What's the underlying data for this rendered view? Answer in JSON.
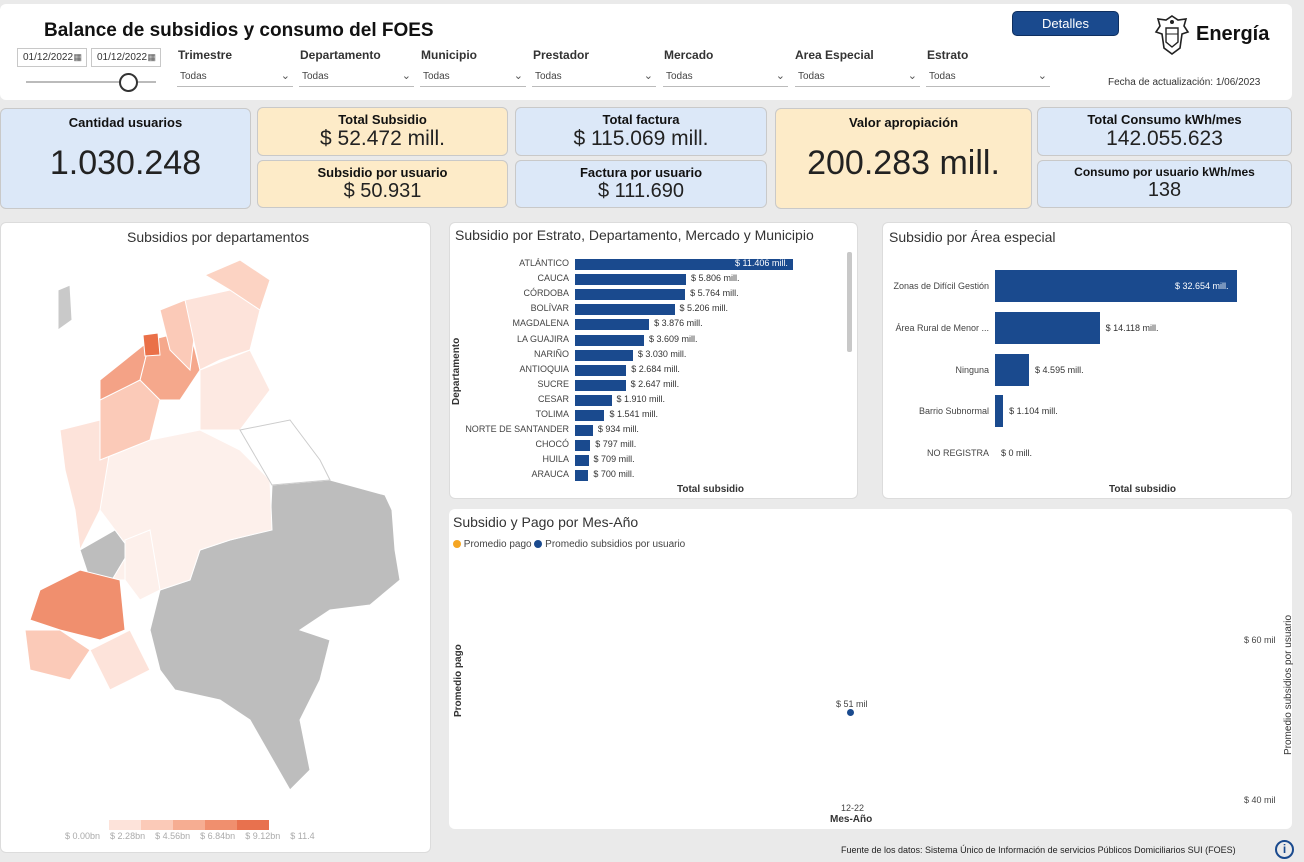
{
  "header": {
    "title": "Balance de subsidios y consumo del FOES",
    "date_from": "01/12/2022",
    "date_to": "01/12/2022",
    "detalles_label": "Detalles",
    "brand": "Energía",
    "fecha_actualizacion": "Fecha de actualización: 1/06/2023"
  },
  "filters": [
    {
      "label": "Trimestre",
      "value": "Todas"
    },
    {
      "label": "Departamento",
      "value": "Todas"
    },
    {
      "label": "Municipio",
      "value": "Todas"
    },
    {
      "label": "Prestador",
      "value": "Todas"
    },
    {
      "label": "Mercado",
      "value": "Todas"
    },
    {
      "label": "Area Especial",
      "value": "Todas"
    },
    {
      "label": "Estrato",
      "value": "Todas"
    }
  ],
  "kpis": {
    "usuarios": {
      "label": "Cantidad usuarios",
      "value": "1.030.248"
    },
    "total_subsidio": {
      "label": "Total Subsidio",
      "value": "$ 52.472 mill."
    },
    "subsidio_usuario": {
      "label": "Subsidio por usuario",
      "value": "$ 50.931"
    },
    "total_factura": {
      "label": "Total factura",
      "value": "$ 115.069 mill."
    },
    "factura_usuario": {
      "label": "Factura por usuario",
      "value": "$ 111.690"
    },
    "apropiacion": {
      "label": "Valor apropiación",
      "value": "200.283 mill."
    },
    "total_consumo": {
      "label": "Total Consumo kWh/mes",
      "value": "142.055.623"
    },
    "consumo_usuario": {
      "label": "Consumo por usuario kWh/mes",
      "value": "138"
    }
  },
  "map": {
    "title": "Subsidios por departamentos",
    "legend": [
      "$ 0.00bn",
      "$ 2.28bn",
      "$ 4.56bn",
      "$ 6.84bn",
      "$ 9.12bn",
      "$ 11.4"
    ],
    "colors": [
      "#fde3da",
      "#fbcab8",
      "#f6ad92",
      "#f08f6e",
      "#e8714e"
    ]
  },
  "chart_data": [
    {
      "type": "bar",
      "title": "Subsidio por Estrato, Departamento, Mercado y Municipio",
      "ylabel": "Departamento",
      "xlabel": "Total subsidio",
      "categories": [
        "ATLÁNTICO",
        "CAUCA",
        "CÓRDOBA",
        "BOLÍVAR",
        "MAGDALENA",
        "LA GUAJIRA",
        "NARIÑO",
        "ANTIOQUIA",
        "SUCRE",
        "CESAR",
        "TOLIMA",
        "NORTE DE SANTANDER",
        "CHOCÓ",
        "HUILA",
        "ARAUCA"
      ],
      "values": [
        11406,
        5806,
        5764,
        5206,
        3876,
        3609,
        3030,
        2684,
        2647,
        1910,
        1541,
        934,
        797,
        709,
        700
      ],
      "value_labels": [
        "$ 11.406 mill.",
        "$ 5.806 mill.",
        "$ 5.764 mill.",
        "$ 5.206 mill.",
        "$ 3.876 mill.",
        "$ 3.609 mill.",
        "$ 3.030 mill.",
        "$ 2.684 mill.",
        "$ 2.647 mill.",
        "$ 1.910 mill.",
        "$ 1.541 mill.",
        "$ 934 mill.",
        "$ 797 mill.",
        "$ 709 mill.",
        "$ 700 mill."
      ],
      "color": "#1a4a8e"
    },
    {
      "type": "bar",
      "title": "Subsidio por Área especial",
      "xlabel": "Total subsidio",
      "categories": [
        "Zonas de Difícil Gestión",
        "Área Rural de Menor ...",
        "Ninguna",
        "Barrio Subnormal",
        "NO REGISTRA"
      ],
      "values": [
        32654,
        14118,
        4595,
        1104,
        0
      ],
      "value_labels": [
        "$ 32.654 mill.",
        "$ 14.118 mill.",
        "$ 4.595 mill.",
        "$ 1.104 mill.",
        "$ 0 mill."
      ],
      "color": "#1a4a8e"
    },
    {
      "type": "scatter",
      "title": "Subsidio y Pago por Mes-Año",
      "legend": [
        {
          "name": "Promedio pago",
          "color": "#f5a623"
        },
        {
          "name": "Promedio subsidios por usuario",
          "color": "#1a4a8e"
        }
      ],
      "xlabel": "Mes-Año",
      "ylabel_left": "Promedio pago",
      "ylabel_right": "Promedio subsidios por usuario",
      "categories": [
        "12-22"
      ],
      "series": [
        {
          "name": "Promedio subsidios por usuario",
          "values": [
            51
          ],
          "value_labels": [
            "$ 51 mil"
          ]
        }
      ],
      "right_ticks": [
        "$ 60 mil",
        "$ 40 mil"
      ],
      "ylim_right": [
        40,
        60
      ]
    }
  ],
  "footer": {
    "source": "Fuente de los datos: Sistema Único de Información de servicios Públicos Domiciliarios SUI (FOES)"
  }
}
